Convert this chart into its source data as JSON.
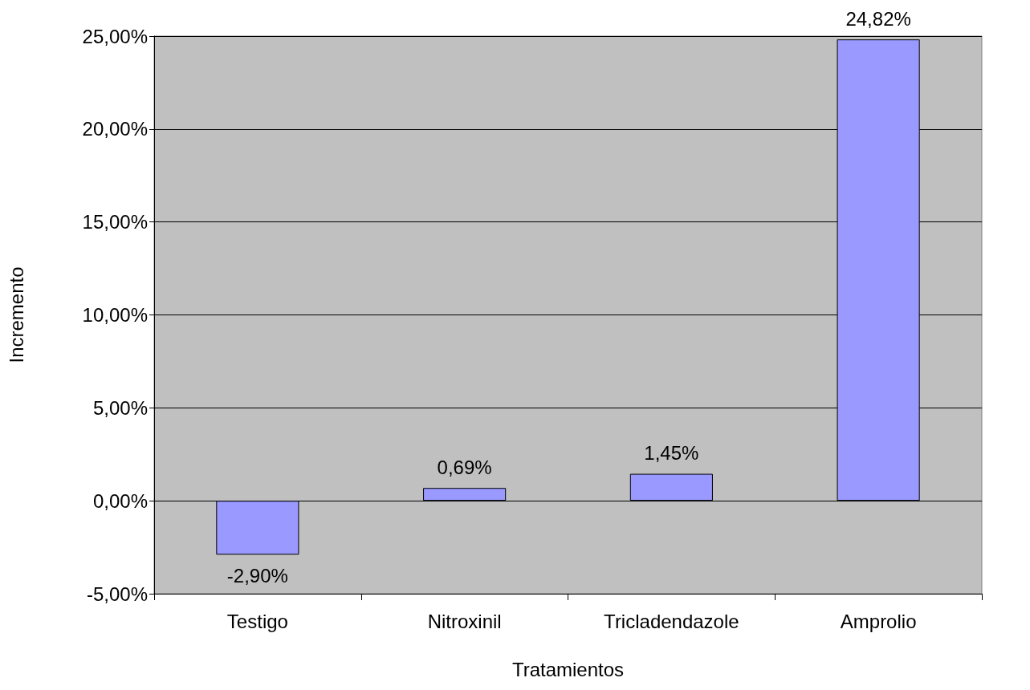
{
  "chart_data": {
    "type": "bar",
    "xlabel": "Tratamientos",
    "ylabel": "Incremento",
    "categories": [
      "Testigo",
      "Nitroxinil",
      "Tricladendazole",
      "Amprolio"
    ],
    "values": [
      -2.9,
      0.69,
      1.45,
      24.82
    ],
    "color": "#9999ff",
    "value_labels": [
      "-2,90%",
      "0,69%",
      "1,45%",
      "24,82%"
    ],
    "ylim": [
      -5,
      25
    ],
    "yticks": [
      {
        "value": -5,
        "label": "-5,00%"
      },
      {
        "value": 0,
        "label": "0,00%"
      },
      {
        "value": 5,
        "label": "5,00%"
      },
      {
        "value": 10,
        "label": "10,00%"
      },
      {
        "value": 15,
        "label": "15,00%"
      },
      {
        "value": 20,
        "label": "20,00%"
      },
      {
        "value": 25,
        "label": "25,00%"
      }
    ],
    "grid": "y"
  }
}
